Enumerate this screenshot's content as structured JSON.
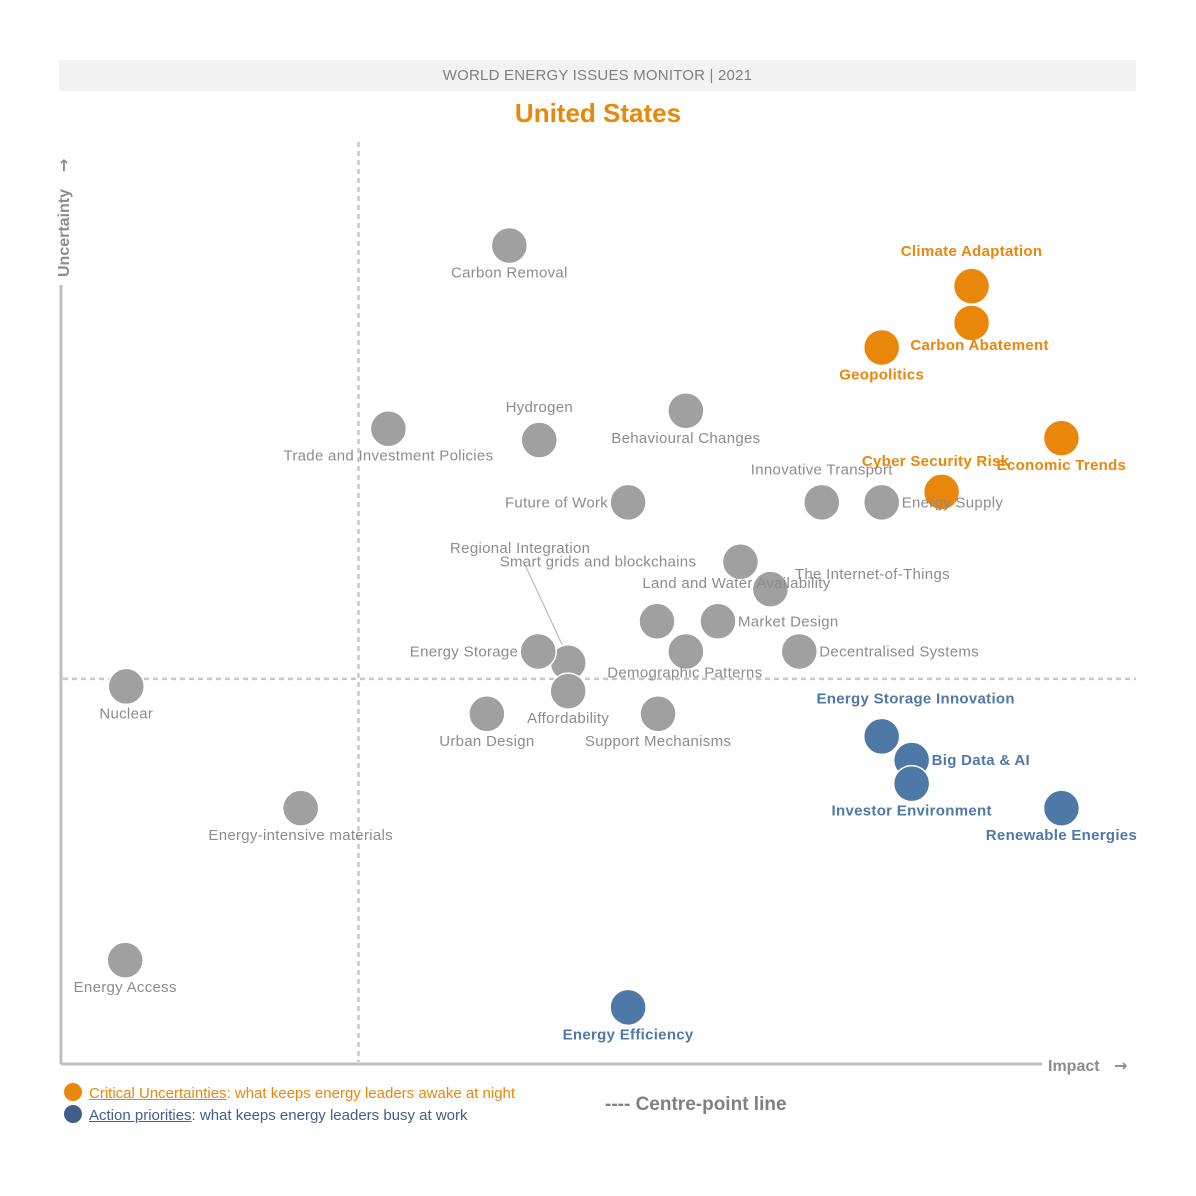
{
  "header": {
    "banner": "WORLD ENERGY ISSUES MONITOR | 2021",
    "title": "United States"
  },
  "legend": {
    "critical": {
      "key": "Critical Uncertainties",
      "text": ": what keeps energy leaders awake at night",
      "color": "#e8870a"
    },
    "action": {
      "key": "Action priorities",
      "text": ": what keeps energy leaders busy at work",
      "color": "#3f5f88"
    },
    "centre_line": "---- Centre-point line"
  },
  "colors": {
    "critical": "#e8870a",
    "action": "#4e79a7",
    "neutral": "#a0a0a0",
    "axis": "#bfbfbf"
  },
  "chart_data": {
    "type": "scatter",
    "xlabel": "Impact",
    "ylabel": "Uncertainty",
    "xlim": [
      0,
      100
    ],
    "ylim": [
      0,
      100
    ],
    "centre_point": {
      "x": 27.8,
      "y": 40.8
    },
    "grid": false,
    "legend_position": "bottom-left",
    "points": [
      {
        "label": "Carbon Removal",
        "x": 41.9,
        "y": 86.7,
        "group": "neutral",
        "lpos": "below"
      },
      {
        "label": "Climate Adaptation",
        "x": 85.1,
        "y": 82.4,
        "group": "critical",
        "lpos": "above-2"
      },
      {
        "label": "Carbon Abatement",
        "x": 85.1,
        "y": 78.5,
        "group": "critical",
        "lpos": "custom"
      },
      {
        "label": "Geopolitics",
        "x": 76.7,
        "y": 75.9,
        "group": "critical",
        "lpos": "below"
      },
      {
        "label": "Behavioural Changes",
        "x": 58.4,
        "y": 69.2,
        "group": "neutral",
        "lpos": "below"
      },
      {
        "label": "Trade and Investment Policies",
        "x": 30.6,
        "y": 67.3,
        "group": "neutral",
        "lpos": "below"
      },
      {
        "label": "Hydrogen",
        "x": 44.7,
        "y": 66.1,
        "group": "neutral",
        "lpos": "above"
      },
      {
        "label": "Economic Trends",
        "x": 93.5,
        "y": 66.3,
        "group": "critical",
        "lpos": "below"
      },
      {
        "label": "Cyber Security Risk",
        "x": 82.3,
        "y": 60.6,
        "group": "critical",
        "lpos": "custom"
      },
      {
        "label": "Future of Work",
        "x": 53.0,
        "y": 59.5,
        "group": "neutral",
        "lpos": "left"
      },
      {
        "label": "Innovative Transport",
        "x": 71.1,
        "y": 59.5,
        "group": "neutral",
        "lpos": "above"
      },
      {
        "label": "Energy Supply",
        "x": 76.7,
        "y": 59.5,
        "group": "neutral",
        "lpos": "right"
      },
      {
        "label": "Land and Water Availability",
        "x": 63.5,
        "y": 53.2,
        "group": "neutral",
        "lpos": "custom"
      },
      {
        "label": "Regional Integration",
        "x": 47.4,
        "y": 42.5,
        "group": "neutral",
        "lpos": "custom"
      },
      {
        "label": "The Internet-of-Things",
        "x": 66.3,
        "y": 50.3,
        "group": "neutral",
        "lpos": "custom"
      },
      {
        "label": "Smart grids and blockchains",
        "x": 55.7,
        "y": 46.9,
        "group": "neutral",
        "lpos": "custom"
      },
      {
        "label": "Market Design",
        "x": 61.4,
        "y": 46.9,
        "group": "neutral",
        "lpos": "right"
      },
      {
        "label": "Energy Storage",
        "x": 44.6,
        "y": 43.7,
        "group": "neutral",
        "lpos": "left"
      },
      {
        "label": "Demographic Patterns",
        "x": 58.4,
        "y": 43.7,
        "group": "neutral",
        "lpos": "custom"
      },
      {
        "label": "Decentralised Systems",
        "x": 69.0,
        "y": 43.7,
        "group": "neutral",
        "lpos": "right"
      },
      {
        "label": "Nuclear",
        "x": 6.1,
        "y": 40.0,
        "group": "neutral",
        "lpos": "below"
      },
      {
        "label": "Affordability",
        "x": 47.4,
        "y": 39.5,
        "group": "neutral",
        "lpos": "below"
      },
      {
        "label": "Urban Design",
        "x": 39.8,
        "y": 37.1,
        "group": "neutral",
        "lpos": "below"
      },
      {
        "label": "Support Mechanisms",
        "x": 55.8,
        "y": 37.1,
        "group": "neutral",
        "lpos": "below"
      },
      {
        "label": "Energy Storage Innovation",
        "x": 76.7,
        "y": 34.7,
        "group": "action",
        "lpos": "custom"
      },
      {
        "label": "Big Data & AI",
        "x": 79.5,
        "y": 32.2,
        "group": "action",
        "lpos": "right"
      },
      {
        "label": "Investor Environment",
        "x": 79.5,
        "y": 29.7,
        "group": "action",
        "lpos": "below"
      },
      {
        "label": "Renewable Energies",
        "x": 93.5,
        "y": 27.1,
        "group": "action",
        "lpos": "below"
      },
      {
        "label": "Energy-intensive materials",
        "x": 22.4,
        "y": 27.1,
        "group": "neutral",
        "lpos": "below"
      },
      {
        "label": "Energy Access",
        "x": 6.0,
        "y": 11.0,
        "group": "neutral",
        "lpos": "below"
      },
      {
        "label": "Energy Efficiency",
        "x": 53.0,
        "y": 6.0,
        "group": "action",
        "lpos": "below"
      }
    ]
  }
}
